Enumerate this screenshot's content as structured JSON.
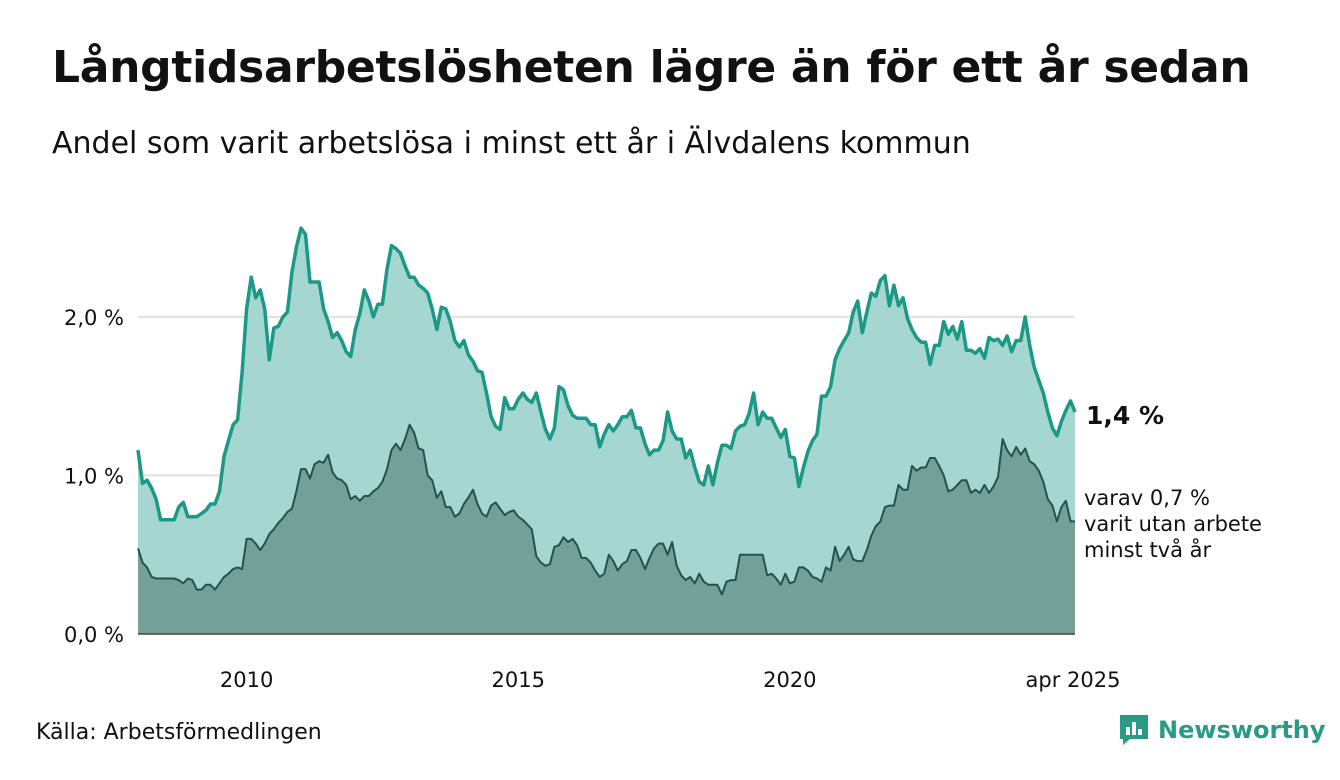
{
  "title": "Långtidsarbetslösheten lägre än för ett år sedan",
  "subtitle": "Andel som varit arbetslösa i minst ett år i Älvdalens kommun",
  "source": "Källa: Arbetsförmedlingen",
  "brand": {
    "name": "Newsworthy",
    "icon": "newsworthy-logo-icon",
    "color": "#2a9a84"
  },
  "chart_data": {
    "type": "area",
    "x_start": "2008-01",
    "x_end": "2025-04",
    "x_step": "month",
    "ylim": [
      0,
      2.8
    ],
    "y_ticks": [
      {
        "value": 0,
        "label": "0,0 %"
      },
      {
        "value": 1,
        "label": "1,0 %"
      },
      {
        "value": 2,
        "label": "2,0 %"
      }
    ],
    "x_ticks": [
      {
        "date": "2010-01",
        "label": "2010"
      },
      {
        "date": "2015-01",
        "label": "2015"
      },
      {
        "date": "2020-01",
        "label": "2020"
      },
      {
        "date": "2025-04",
        "label": "apr 2025"
      }
    ],
    "grid": true,
    "series": [
      {
        "key": "at_least_one_year",
        "line_color": "#1b9986",
        "fill_color": "#a5d6d0",
        "end_label": "1,4 %",
        "values": [
          1.16,
          0.95,
          0.97,
          0.92,
          0.85,
          0.72,
          0.72,
          0.72,
          0.72,
          0.8,
          0.83,
          0.74,
          0.74,
          0.74,
          0.76,
          0.78,
          0.82,
          0.82,
          0.9,
          1.12,
          1.22,
          1.32,
          1.35,
          1.65,
          2.05,
          2.25,
          2.12,
          2.17,
          2.05,
          1.73,
          1.93,
          1.94,
          2.0,
          2.03,
          2.28,
          2.44,
          2.56,
          2.52,
          2.22,
          2.22,
          2.22,
          2.05,
          1.97,
          1.87,
          1.9,
          1.85,
          1.78,
          1.75,
          1.92,
          2.02,
          2.17,
          2.1,
          2.0,
          2.08,
          2.08,
          2.3,
          2.45,
          2.43,
          2.4,
          2.32,
          2.25,
          2.25,
          2.2,
          2.18,
          2.15,
          2.05,
          1.92,
          2.06,
          2.05,
          1.97,
          1.85,
          1.81,
          1.85,
          1.76,
          1.72,
          1.66,
          1.65,
          1.52,
          1.37,
          1.31,
          1.29,
          1.49,
          1.42,
          1.42,
          1.48,
          1.52,
          1.48,
          1.46,
          1.52,
          1.4,
          1.29,
          1.23,
          1.3,
          1.56,
          1.54,
          1.44,
          1.38,
          1.36,
          1.36,
          1.36,
          1.32,
          1.32,
          1.18,
          1.26,
          1.32,
          1.28,
          1.32,
          1.37,
          1.37,
          1.41,
          1.3,
          1.3,
          1.2,
          1.13,
          1.16,
          1.16,
          1.22,
          1.4,
          1.28,
          1.23,
          1.23,
          1.11,
          1.16,
          1.05,
          0.96,
          0.94,
          1.06,
          0.94,
          1.08,
          1.19,
          1.19,
          1.17,
          1.28,
          1.31,
          1.32,
          1.39,
          1.52,
          1.32,
          1.4,
          1.36,
          1.36,
          1.3,
          1.24,
          1.29,
          1.12,
          1.11,
          0.93,
          1.05,
          1.15,
          1.22,
          1.26,
          1.5,
          1.5,
          1.56,
          1.73,
          1.8,
          1.85,
          1.9,
          2.03,
          2.1,
          1.9,
          2.03,
          2.15,
          2.13,
          2.23,
          2.26,
          2.07,
          2.2,
          2.07,
          2.12,
          1.99,
          1.92,
          1.87,
          1.84,
          1.84,
          1.7,
          1.82,
          1.82,
          1.97,
          1.89,
          1.94,
          1.86,
          1.97,
          1.79,
          1.79,
          1.77,
          1.8,
          1.74,
          1.87,
          1.85,
          1.86,
          1.82,
          1.88,
          1.78,
          1.85,
          1.85,
          2.0,
          1.82,
          1.68,
          1.6,
          1.52,
          1.4,
          1.3,
          1.25,
          1.34,
          1.41,
          1.47,
          1.4
        ]
      },
      {
        "key": "at_least_two_years",
        "line_color": "#25524a",
        "fill_color": "#73a097",
        "end_label": [
          "varav 0,7 %",
          "varit utan arbete",
          "minst två år"
        ],
        "values": [
          0.54,
          0.45,
          0.42,
          0.36,
          0.35,
          0.35,
          0.35,
          0.35,
          0.35,
          0.34,
          0.32,
          0.35,
          0.34,
          0.28,
          0.28,
          0.31,
          0.31,
          0.28,
          0.32,
          0.36,
          0.38,
          0.41,
          0.42,
          0.41,
          0.6,
          0.6,
          0.57,
          0.53,
          0.57,
          0.63,
          0.66,
          0.7,
          0.73,
          0.77,
          0.79,
          0.9,
          1.04,
          1.04,
          0.98,
          1.07,
          1.09,
          1.08,
          1.13,
          1.02,
          0.98,
          0.97,
          0.94,
          0.85,
          0.87,
          0.84,
          0.87,
          0.87,
          0.9,
          0.92,
          0.96,
          1.04,
          1.16,
          1.2,
          1.16,
          1.23,
          1.32,
          1.27,
          1.17,
          1.16,
          1.0,
          0.97,
          0.86,
          0.9,
          0.8,
          0.8,
          0.74,
          0.76,
          0.82,
          0.86,
          0.91,
          0.82,
          0.76,
          0.74,
          0.81,
          0.83,
          0.79,
          0.75,
          0.77,
          0.78,
          0.74,
          0.72,
          0.69,
          0.66,
          0.49,
          0.45,
          0.43,
          0.44,
          0.55,
          0.56,
          0.61,
          0.58,
          0.6,
          0.56,
          0.48,
          0.48,
          0.45,
          0.4,
          0.36,
          0.38,
          0.5,
          0.46,
          0.4,
          0.44,
          0.46,
          0.53,
          0.53,
          0.48,
          0.41,
          0.48,
          0.54,
          0.57,
          0.57,
          0.5,
          0.58,
          0.43,
          0.37,
          0.34,
          0.36,
          0.32,
          0.38,
          0.33,
          0.31,
          0.31,
          0.31,
          0.25,
          0.33,
          0.34,
          0.34,
          0.5,
          0.5,
          0.5,
          0.5,
          0.5,
          0.5,
          0.37,
          0.38,
          0.35,
          0.31,
          0.38,
          0.32,
          0.33,
          0.42,
          0.42,
          0.4,
          0.36,
          0.35,
          0.33,
          0.42,
          0.4,
          0.55,
          0.46,
          0.5,
          0.55,
          0.47,
          0.46,
          0.46,
          0.53,
          0.62,
          0.68,
          0.71,
          0.8,
          0.81,
          0.81,
          0.94,
          0.91,
          0.91,
          1.06,
          1.03,
          1.05,
          1.05,
          1.11,
          1.11,
          1.06,
          1.0,
          0.9,
          0.91,
          0.94,
          0.97,
          0.97,
          0.89,
          0.91,
          0.89,
          0.94,
          0.89,
          0.93,
          0.99,
          1.23,
          1.16,
          1.12,
          1.18,
          1.13,
          1.17,
          1.09,
          1.07,
          1.03,
          0.96,
          0.85,
          0.81,
          0.71,
          0.8,
          0.84,
          0.71,
          0.71
        ]
      }
    ]
  }
}
